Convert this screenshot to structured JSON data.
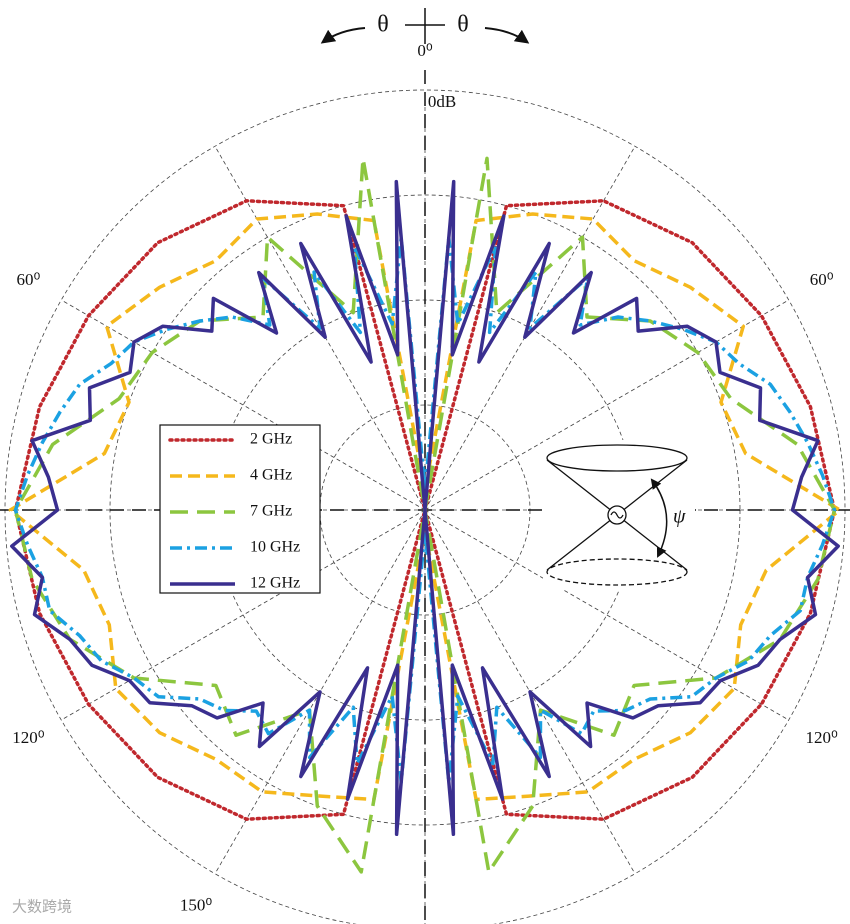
{
  "chart_data": {
    "type": "polar",
    "rlim": [
      -40,
      0
    ],
    "rgrid": [
      -30,
      -20,
      -10,
      0
    ],
    "rticks": [
      {
        "value": 0,
        "label": "0dB"
      }
    ],
    "thetagrid": [
      0,
      30,
      60,
      90,
      120,
      150,
      180,
      210,
      240,
      270,
      300,
      330
    ],
    "thetaticks": [
      {
        "value": 0,
        "label": "0⁰"
      },
      {
        "value": -60,
        "label": "60⁰"
      },
      {
        "value": 60,
        "label": "60⁰"
      },
      {
        "value": -120,
        "label": "120⁰"
      },
      {
        "value": 120,
        "label": "120⁰"
      },
      {
        "value": -150,
        "label": "150⁰"
      }
    ],
    "legend": "left",
    "series": [
      {
        "name": "2 GHz",
        "color": "#c0282d",
        "style": "dotted",
        "theta": [
          0,
          15,
          30,
          45,
          60,
          75,
          90,
          105,
          120,
          135,
          150,
          165,
          180,
          195,
          210,
          225,
          240,
          255,
          270,
          285,
          300,
          315,
          330,
          345
        ],
        "values": [
          -40,
          -10,
          -6,
          -4,
          -3,
          -2,
          -1,
          -2,
          -3,
          -4,
          -6,
          -10,
          -40,
          -10,
          -6,
          -4,
          -3,
          -2,
          -1,
          -2,
          -3,
          -4,
          -6,
          -10
        ]
      },
      {
        "name": "4 GHz",
        "color": "#f5b81c",
        "style": "dashed",
        "theta": [
          0,
          10,
          20,
          30,
          40,
          50,
          60,
          70,
          80,
          90,
          100,
          110,
          120,
          130,
          140,
          150,
          160,
          170,
          180,
          190,
          200,
          210,
          220,
          230,
          240,
          250,
          260,
          270,
          280,
          290,
          300,
          310,
          320,
          330,
          340,
          350
        ],
        "values": [
          -38,
          -12,
          -10,
          -8,
          -9,
          -7,
          -5,
          -10,
          -9,
          -0.5,
          -7,
          -8,
          -6,
          -7,
          -9,
          -9,
          -11,
          -12,
          -38,
          -12,
          -11,
          -9,
          -9,
          -7,
          -6,
          -8,
          -7,
          -0.5,
          -9,
          -10,
          -5,
          -7,
          -9,
          -8,
          -10,
          -12
        ]
      },
      {
        "name": "7 GHz",
        "color": "#8cc63f",
        "style": "longdash",
        "theta": [
          0,
          10,
          20,
          30,
          40,
          50,
          60,
          70,
          80,
          90,
          100,
          110,
          120,
          130,
          140,
          150,
          160,
          170,
          180,
          190,
          200,
          210,
          220,
          230,
          240,
          250,
          260,
          270,
          280,
          290,
          300,
          310,
          320,
          330,
          340,
          350
        ],
        "values": [
          -40,
          -6,
          -20,
          -10,
          -16,
          -12,
          -10,
          -9,
          -4,
          -1,
          -2,
          -4,
          -8,
          -14,
          -12,
          -18,
          -10,
          -5,
          -40,
          -5,
          -10,
          -18,
          -12,
          -14,
          -8,
          -4,
          -2,
          -1,
          -4,
          -9,
          -10,
          -12,
          -16,
          -10,
          -20,
          -6
        ]
      },
      {
        "name": "10 GHz",
        "color": "#1ba1e2",
        "style": "dashdot",
        "theta": [
          0,
          5,
          10,
          15,
          20,
          25,
          30,
          35,
          40,
          45,
          50,
          55,
          60,
          65,
          70,
          75,
          80,
          85,
          90,
          95,
          100,
          105,
          110,
          115,
          120,
          125,
          130,
          135,
          140,
          145,
          150,
          155,
          160,
          165,
          170,
          175,
          180,
          185,
          190,
          195,
          200,
          205,
          210,
          215,
          220,
          225,
          230,
          235,
          240,
          245,
          250,
          255,
          260,
          265,
          270,
          275,
          280,
          285,
          290,
          295,
          300,
          305,
          310,
          315,
          320,
          325,
          330,
          335,
          340,
          345,
          350,
          355
        ],
        "values": [
          -38,
          -14,
          -22,
          -14,
          -22,
          -15,
          -20,
          -13,
          -17,
          -14,
          -12,
          -10,
          -8,
          -7,
          -5,
          -4,
          -3,
          -2,
          -1,
          -2,
          -3,
          -3,
          -5,
          -6,
          -8,
          -9,
          -12,
          -13,
          -15,
          -14,
          -18,
          -14,
          -20,
          -15,
          -22,
          -14,
          -38,
          -14,
          -22,
          -15,
          -20,
          -14,
          -18,
          -14,
          -15,
          -13,
          -12,
          -9,
          -8,
          -6,
          -5,
          -3,
          -3,
          -2,
          -1,
          -2,
          -3,
          -4,
          -5,
          -7,
          -8,
          -10,
          -12,
          -14,
          -17,
          -13,
          -20,
          -15,
          -22,
          -14,
          -22,
          -14
        ]
      },
      {
        "name": "12 GHz",
        "color": "#3a2f8f",
        "style": "solid",
        "theta": [
          0,
          5,
          10,
          15,
          20,
          25,
          30,
          35,
          40,
          45,
          50,
          55,
          60,
          65,
          70,
          75,
          80,
          85,
          90,
          95,
          100,
          105,
          110,
          115,
          120,
          125,
          130,
          135,
          140,
          145,
          150,
          155,
          160,
          165,
          170,
          175,
          180,
          185,
          190,
          195,
          200,
          205,
          210,
          215,
          220,
          225,
          230,
          235,
          240,
          245,
          250,
          255,
          260,
          265,
          270,
          275,
          280,
          285,
          290,
          295,
          300,
          305,
          310,
          315,
          320,
          325,
          330,
          335,
          340,
          345,
          350,
          355
        ],
        "values": [
          -40,
          -8.6,
          -25,
          -11,
          -25,
          -12,
          -21,
          -12.4,
          -18,
          -11.5,
          -13.5,
          -9.5,
          -8,
          -9,
          -6,
          -7,
          -2,
          -4,
          -5,
          -0.5,
          -3,
          -1.5,
          -4,
          -5,
          -7.5,
          -8,
          -11,
          -12,
          -16,
          -12.5,
          -20,
          -12,
          -24,
          -11.5,
          -25,
          -9,
          -40,
          -9,
          -25,
          -11.5,
          -24,
          -12,
          -20,
          -12.5,
          -16,
          -12,
          -11,
          -8,
          -7.5,
          -5,
          -4,
          -1.5,
          -3,
          -0.5,
          -5,
          -4,
          -2,
          -7,
          -6,
          -9,
          -8,
          -9.5,
          -13.5,
          -11.5,
          -18,
          -12.4,
          -21,
          -12,
          -25,
          -11,
          -25,
          -8.6
        ]
      }
    ],
    "annotations": {
      "theta_left": "θ",
      "theta_right": "θ",
      "psi": "ψ",
      "watermark": "大数跨境"
    }
  }
}
